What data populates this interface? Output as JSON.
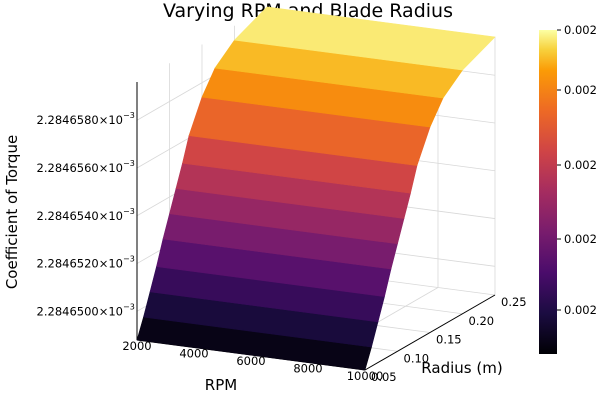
{
  "chart_data": {
    "type": "surface",
    "title": "Varying RPM and Blade Radius",
    "xlabel": "RPM",
    "ylabel": "Radius (m)",
    "zlabel": "Coefficient of Torque",
    "colormap": "inferno",
    "x_ticks": [
      "2000",
      "4000",
      "6000",
      "8000",
      "10000"
    ],
    "y_ticks": [
      "0.05",
      "0.10",
      "0.15",
      "0.20",
      "0.25"
    ],
    "z_ticks": [
      {
        "value": 0.00228465,
        "label": "2.2846500×10"
      },
      {
        "value": 0.002284652,
        "label": "2.2846520×10"
      },
      {
        "value": 0.002284654,
        "label": "2.2846540×10"
      },
      {
        "value": 0.002284656,
        "label": "2.2846560×10"
      },
      {
        "value": 0.002284658,
        "label": "2.2846580×10"
      }
    ],
    "z_tick_exponent": "−3",
    "colorbar_ticks": [
      "0.002",
      "0.002",
      "0.002",
      "0.002",
      "0.002"
    ],
    "xlim": [
      2000,
      10000
    ],
    "ylim": [
      0.05,
      0.25
    ],
    "zlim": [
      0.0022846488,
      0.0022846596
    ],
    "surface": {
      "radius": [
        0.05,
        0.06,
        0.07,
        0.08,
        0.09,
        0.1,
        0.11,
        0.12,
        0.13,
        0.15,
        0.17,
        0.2,
        0.25
      ],
      "coefficient_of_torque": [
        0.0022846488,
        0.0022846496,
        0.0022846505,
        0.0022846514,
        0.0022846524,
        0.0022846533,
        0.0022846542,
        0.0022846551,
        0.0022846561,
        0.0022846574,
        0.0022846583,
        0.002284659,
        0.0022846596
      ],
      "constant_along_rpm": true
    },
    "grid": true,
    "legend": "colorbar-right"
  }
}
